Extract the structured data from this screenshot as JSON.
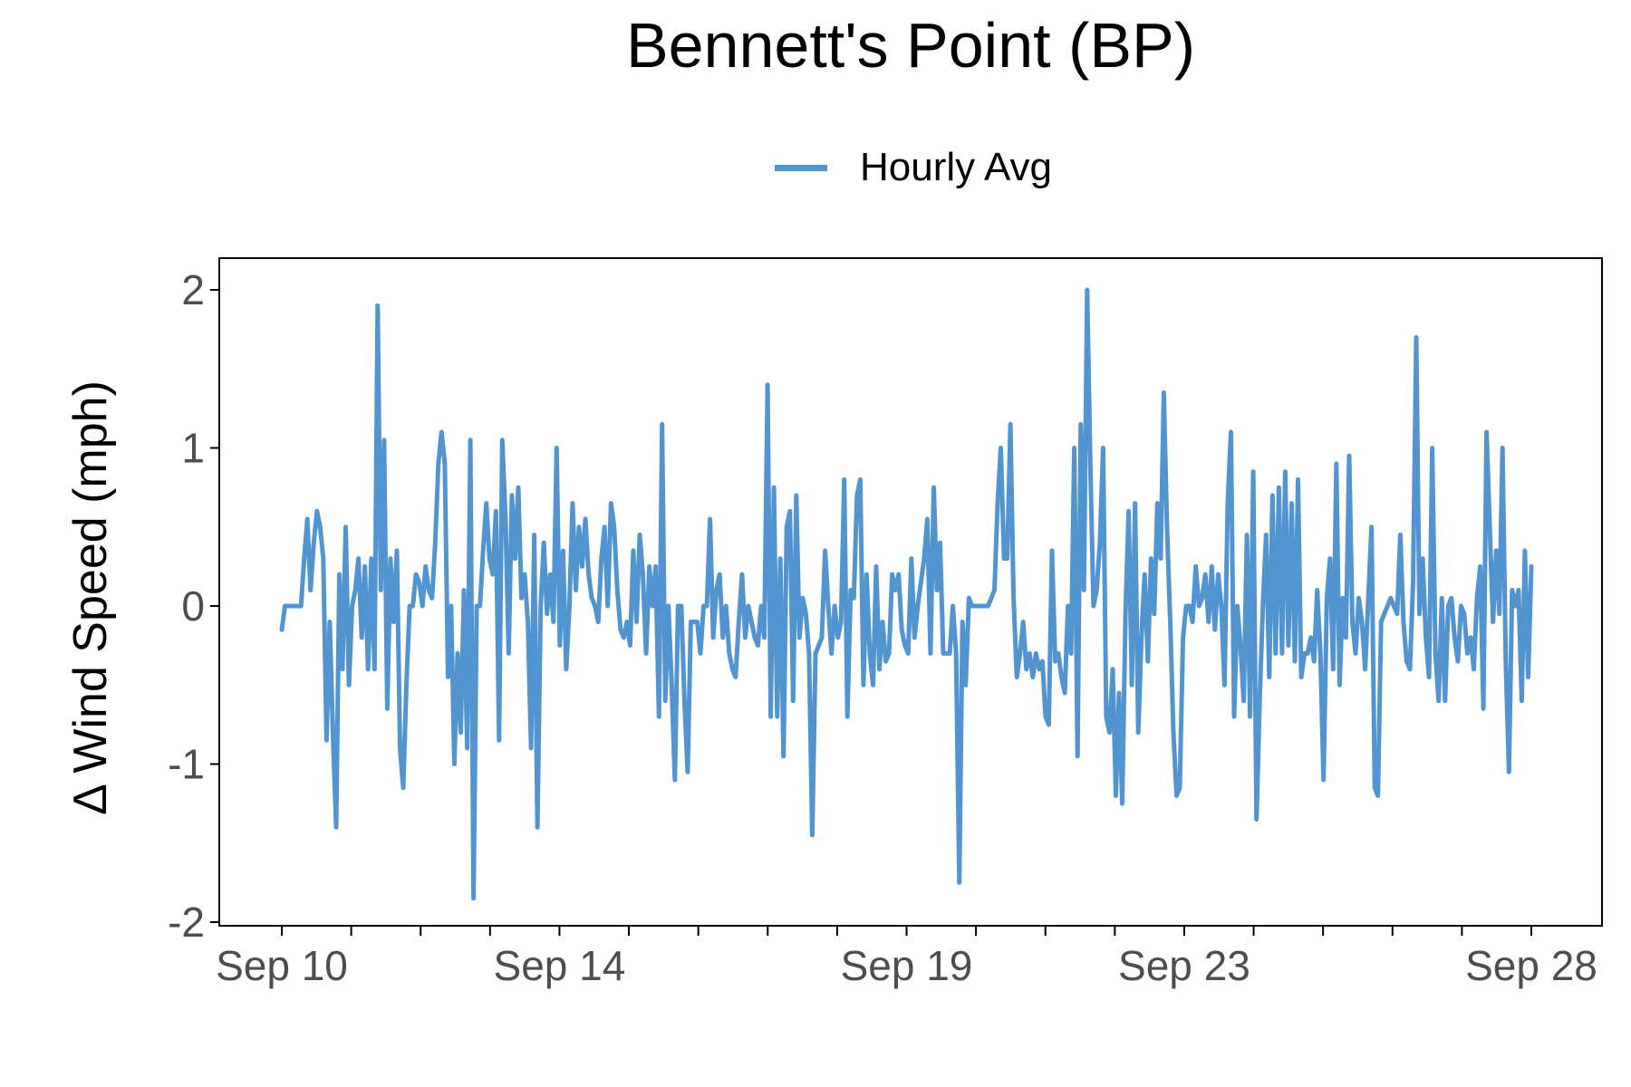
{
  "chart_data": {
    "type": "line",
    "title": "Bennett's Point (BP)",
    "xlabel": "",
    "ylabel": "Δ Wind Speed (mph)",
    "ylim": [
      -2.05,
      2.2
    ],
    "xlim": [
      "Sep 9 12:00",
      "Sep 28 06:00"
    ],
    "yticks": [
      "2",
      "1",
      "0",
      "-1",
      "-2"
    ],
    "ytick_values": [
      2,
      1,
      0,
      -1,
      -2
    ],
    "xtick_labels": [
      "Sep 10",
      "Sep 14",
      "Sep 19",
      "Sep 23",
      "Sep 28"
    ],
    "xtick_days": [
      10,
      14,
      19,
      23,
      28
    ],
    "minor_xtick_days": [
      11,
      12,
      13,
      15,
      16,
      17,
      18,
      20,
      21,
      22,
      24,
      25,
      26,
      27
    ],
    "grid": false,
    "legend": {
      "position": "top",
      "entries": [
        "Hourly Avg"
      ]
    },
    "colors": {
      "series": "#5294cf",
      "axis": "#000000",
      "tick_text": "#4d4d4d"
    },
    "series": [
      {
        "name": "Hourly Avg",
        "x_day_start": 10,
        "x_day_end": 28,
        "values": [
          -0.15,
          0.0,
          0.0,
          0.0,
          0.0,
          0.0,
          0.0,
          0.3,
          0.55,
          0.1,
          0.4,
          0.6,
          0.5,
          0.3,
          -0.85,
          -0.1,
          -0.8,
          -1.4,
          0.2,
          -0.4,
          0.5,
          -0.5,
          0.0,
          0.1,
          0.3,
          -0.2,
          0.25,
          -0.4,
          0.3,
          -0.4,
          1.9,
          0.1,
          1.05,
          -0.65,
          0.3,
          -0.1,
          0.35,
          -0.9,
          -1.15,
          -0.5,
          0.0,
          0.0,
          0.2,
          0.15,
          0.0,
          0.25,
          0.1,
          0.05,
          0.4,
          0.9,
          1.1,
          0.9,
          -0.45,
          0.0,
          -1.0,
          -0.3,
          -0.8,
          0.1,
          -0.9,
          1.05,
          -1.85,
          0.0,
          0.0,
          0.35,
          0.65,
          0.3,
          0.2,
          0.6,
          -0.85,
          1.05,
          0.55,
          -0.3,
          0.7,
          0.3,
          0.75,
          0.05,
          0.2,
          -0.1,
          -0.9,
          0.45,
          -1.4,
          0.0,
          0.4,
          -0.05,
          0.2,
          -0.1,
          1.0,
          -0.25,
          0.35,
          -0.4,
          0.0,
          0.65,
          0.1,
          0.5,
          0.25,
          0.55,
          0.2,
          0.05,
          0.0,
          -0.1,
          0.3,
          0.5,
          0.0,
          0.65,
          0.5,
          0.1,
          -0.15,
          -0.2,
          -0.1,
          -0.25,
          0.35,
          -0.1,
          0.45,
          0.2,
          -0.3,
          0.25,
          0.0,
          0.25,
          -0.7,
          1.15,
          -0.6,
          0.0,
          -0.5,
          -1.1,
          0.0,
          0.0,
          -0.6,
          -1.05,
          -0.1,
          -0.1,
          -0.1,
          -0.3,
          0.0,
          0.0,
          0.55,
          -0.2,
          0.1,
          0.2,
          -0.2,
          0.0,
          -0.3,
          -0.4,
          -0.45,
          -0.1,
          0.2,
          -0.2,
          0.0,
          -0.1,
          -0.2,
          -0.25,
          0.0,
          -0.2,
          1.4,
          -0.7,
          0.75,
          -0.7,
          0.3,
          -0.95,
          0.5,
          0.6,
          -0.6,
          0.7,
          -0.2,
          0.05,
          -0.05,
          -0.3,
          -1.45,
          -0.3,
          -0.25,
          -0.2,
          0.35,
          0.0,
          -0.3,
          0.0,
          -0.2,
          -0.1,
          0.8,
          -0.7,
          0.1,
          0.05,
          0.7,
          0.8,
          -0.5,
          0.2,
          -0.3,
          -0.5,
          0.25,
          -0.4,
          -0.1,
          -0.35,
          -0.3,
          0.2,
          0.1,
          0.2,
          -0.15,
          -0.25,
          -0.3,
          0.3,
          -0.2,
          0.0,
          0.15,
          0.3,
          0.55,
          -0.3,
          0.75,
          0.1,
          0.4,
          -0.3,
          -0.3,
          -0.3,
          0.0,
          -0.3,
          -1.75,
          -0.1,
          -0.5,
          0.05,
          0.0,
          0.0,
          0.0,
          0.0,
          0.0,
          0.0,
          0.05,
          0.1,
          0.65,
          1.0,
          0.3,
          0.3,
          1.15,
          0.05,
          -0.45,
          -0.3,
          -0.1,
          -0.4,
          -0.3,
          -0.45,
          -0.3,
          -0.4,
          -0.35,
          -0.7,
          -0.75,
          0.35,
          -0.35,
          -0.3,
          -0.45,
          -0.55,
          0.0,
          -0.3,
          1.0,
          -0.95,
          1.15,
          0.1,
          2.0,
          0.9,
          0.0,
          0.1,
          0.4,
          1.0,
          -0.7,
          -0.8,
          -0.4,
          -1.2,
          -0.55,
          -1.25,
          -0.05,
          0.6,
          -0.5,
          0.65,
          -0.8,
          -0.2,
          0.2,
          -0.35,
          0.3,
          -0.05,
          0.65,
          0.3,
          1.35,
          0.5,
          -0.1,
          -0.8,
          -1.2,
          -1.15,
          -0.2,
          0.0,
          0.0,
          -0.1,
          0.25,
          0.0,
          0.05,
          0.2,
          -0.1,
          0.25,
          -0.15,
          0.2,
          0.0,
          -0.5,
          0.65,
          1.1,
          -0.7,
          0.0,
          -0.25,
          -0.6,
          0.45,
          -0.7,
          0.85,
          -1.35,
          -0.6,
          0.0,
          0.45,
          -0.45,
          0.7,
          -0.3,
          0.75,
          -0.3,
          0.85,
          -0.25,
          0.65,
          -0.35,
          0.8,
          -0.45,
          -0.3,
          -0.3,
          -0.2,
          -0.35,
          0.1,
          -0.3,
          -1.1,
          0.05,
          0.3,
          -0.4,
          0.9,
          -0.5,
          0.05,
          -0.2,
          0.95,
          -0.1,
          -0.3,
          0.05,
          -0.1,
          -0.4,
          0.05,
          0.5,
          -1.15,
          -1.2,
          -0.1,
          -0.05,
          0.0,
          0.05,
          0.0,
          -0.05,
          0.45,
          -0.1,
          -0.35,
          -0.4,
          0.15,
          1.7,
          -0.05,
          0.3,
          -0.2,
          -0.45,
          1.0,
          -0.3,
          -0.6,
          0.05,
          -0.6,
          0.0,
          0.05,
          -0.2,
          -0.35,
          0.0,
          -0.05,
          -0.3,
          -0.2,
          -0.4,
          0.05,
          0.25,
          -0.65,
          1.1,
          0.5,
          -0.1,
          0.35,
          -0.05,
          1.0,
          -0.35,
          -1.05,
          0.1,
          0.0,
          0.1,
          -0.6,
          0.35,
          -0.45,
          0.25
        ]
      }
    ]
  }
}
